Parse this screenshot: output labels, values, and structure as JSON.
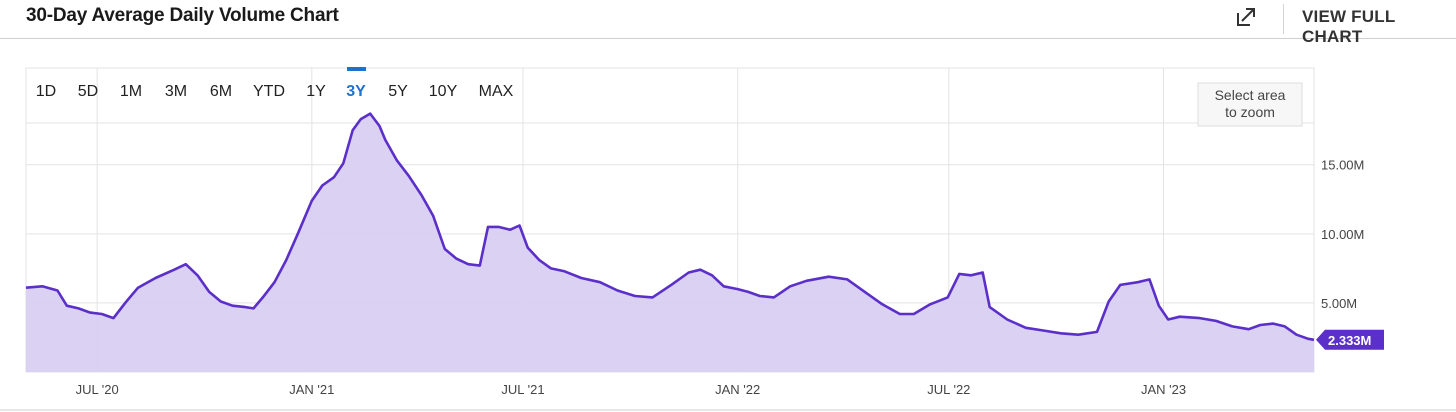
{
  "header": {
    "title": "30-Day Average Daily Volume Chart",
    "external_icon": "external-link-icon",
    "view_full_label": "VIEW FULL CHART"
  },
  "ranges": [
    "1D",
    "5D",
    "1M",
    "3M",
    "6M",
    "YTD",
    "1Y",
    "3Y",
    "5Y",
    "10Y",
    "MAX"
  ],
  "active_range": "3Y",
  "zoom_hint": [
    "Select area",
    "to zoom"
  ],
  "colors": {
    "line": "#5b2fc9",
    "fill": "#d9cff1",
    "active": "#1f72cc",
    "grid": "#e3e3e3"
  },
  "chart_data": {
    "type": "area",
    "title": "30-Day Average Daily Volume Chart",
    "x_ticks": [
      "JUL '20",
      "JAN '21",
      "JUL '21",
      "JAN '22",
      "JUL '22",
      "JAN '23"
    ],
    "x_tick_dates": [
      "2020-07-01",
      "2021-01-01",
      "2021-07-01",
      "2022-01-01",
      "2022-07-01",
      "2023-01-01"
    ],
    "x_range": [
      "2020-05-01",
      "2023-05-10"
    ],
    "y_ticks": [
      "5.00M",
      "10.00M",
      "15.00M"
    ],
    "y_tick_values": [
      5,
      10,
      15
    ],
    "y_unit": "M",
    "ylim": [
      0,
      22
    ],
    "y_axis_position": "right",
    "grid": true,
    "last_value_label": "2.333M",
    "last_value": 2.333,
    "series": [
      {
        "values": [
          [
            "2020-05-01",
            6.1
          ],
          [
            "2020-05-15",
            6.2
          ],
          [
            "2020-05-28",
            5.9
          ],
          [
            "2020-06-05",
            4.8
          ],
          [
            "2020-06-15",
            4.6
          ],
          [
            "2020-06-25",
            4.3
          ],
          [
            "2020-07-05",
            4.2
          ],
          [
            "2020-07-15",
            3.9
          ],
          [
            "2020-07-25",
            5.0
          ],
          [
            "2020-08-05",
            6.1
          ],
          [
            "2020-08-20",
            6.8
          ],
          [
            "2020-09-05",
            7.4
          ],
          [
            "2020-09-15",
            7.8
          ],
          [
            "2020-09-25",
            7.0
          ],
          [
            "2020-10-05",
            5.8
          ],
          [
            "2020-10-15",
            5.1
          ],
          [
            "2020-10-25",
            4.8
          ],
          [
            "2020-11-05",
            4.7
          ],
          [
            "2020-11-12",
            4.6
          ],
          [
            "2020-11-20",
            5.4
          ],
          [
            "2020-11-30",
            6.5
          ],
          [
            "2020-12-10",
            8.1
          ],
          [
            "2020-12-20",
            10.0
          ],
          [
            "2021-01-01",
            12.4
          ],
          [
            "2021-01-10",
            13.5
          ],
          [
            "2021-01-20",
            14.1
          ],
          [
            "2021-01-28",
            15.1
          ],
          [
            "2021-02-05",
            17.5
          ],
          [
            "2021-02-12",
            18.3
          ],
          [
            "2021-02-20",
            18.7
          ],
          [
            "2021-02-28",
            17.8
          ],
          [
            "2021-03-05",
            16.8
          ],
          [
            "2021-03-15",
            15.3
          ],
          [
            "2021-03-25",
            14.2
          ],
          [
            "2021-04-05",
            12.8
          ],
          [
            "2021-04-15",
            11.3
          ],
          [
            "2021-04-25",
            8.9
          ],
          [
            "2021-05-05",
            8.2
          ],
          [
            "2021-05-15",
            7.8
          ],
          [
            "2021-05-25",
            7.7
          ],
          [
            "2021-06-01",
            10.5
          ],
          [
            "2021-06-10",
            10.5
          ],
          [
            "2021-06-20",
            10.3
          ],
          [
            "2021-06-28",
            10.6
          ],
          [
            "2021-07-05",
            9.0
          ],
          [
            "2021-07-15",
            8.1
          ],
          [
            "2021-07-25",
            7.5
          ],
          [
            "2021-08-05",
            7.3
          ],
          [
            "2021-08-20",
            6.8
          ],
          [
            "2021-09-05",
            6.5
          ],
          [
            "2021-09-20",
            5.9
          ],
          [
            "2021-10-05",
            5.5
          ],
          [
            "2021-10-20",
            5.4
          ],
          [
            "2021-11-05",
            6.3
          ],
          [
            "2021-11-20",
            7.2
          ],
          [
            "2021-11-30",
            7.4
          ],
          [
            "2021-12-10",
            7.0
          ],
          [
            "2021-12-20",
            6.2
          ],
          [
            "2022-01-01",
            6.0
          ],
          [
            "2022-01-10",
            5.8
          ],
          [
            "2022-01-20",
            5.5
          ],
          [
            "2022-02-01",
            5.4
          ],
          [
            "2022-02-15",
            6.2
          ],
          [
            "2022-03-01",
            6.6
          ],
          [
            "2022-03-20",
            6.9
          ],
          [
            "2022-04-05",
            6.7
          ],
          [
            "2022-04-20",
            5.8
          ],
          [
            "2022-05-05",
            4.9
          ],
          [
            "2022-05-20",
            4.2
          ],
          [
            "2022-06-01",
            4.2
          ],
          [
            "2022-06-15",
            4.9
          ],
          [
            "2022-06-30",
            5.4
          ],
          [
            "2022-07-10",
            7.1
          ],
          [
            "2022-07-20",
            7.0
          ],
          [
            "2022-07-30",
            7.2
          ],
          [
            "2022-08-05",
            4.7
          ],
          [
            "2022-08-20",
            3.8
          ],
          [
            "2022-09-05",
            3.2
          ],
          [
            "2022-09-20",
            3.0
          ],
          [
            "2022-10-05",
            2.8
          ],
          [
            "2022-10-20",
            2.7
          ],
          [
            "2022-11-05",
            2.9
          ],
          [
            "2022-11-15",
            5.1
          ],
          [
            "2022-11-25",
            6.3
          ],
          [
            "2022-12-10",
            6.5
          ],
          [
            "2022-12-20",
            6.7
          ],
          [
            "2022-12-28",
            4.8
          ],
          [
            "2023-01-05",
            3.8
          ],
          [
            "2023-01-15",
            4.0
          ],
          [
            "2023-02-01",
            3.9
          ],
          [
            "2023-02-15",
            3.7
          ],
          [
            "2023-03-01",
            3.3
          ],
          [
            "2023-03-15",
            3.1
          ],
          [
            "2023-03-25",
            3.4
          ],
          [
            "2023-04-05",
            3.5
          ],
          [
            "2023-04-15",
            3.3
          ],
          [
            "2023-04-25",
            2.7
          ],
          [
            "2023-05-05",
            2.4
          ],
          [
            "2023-05-10",
            2.333
          ]
        ]
      }
    ]
  }
}
